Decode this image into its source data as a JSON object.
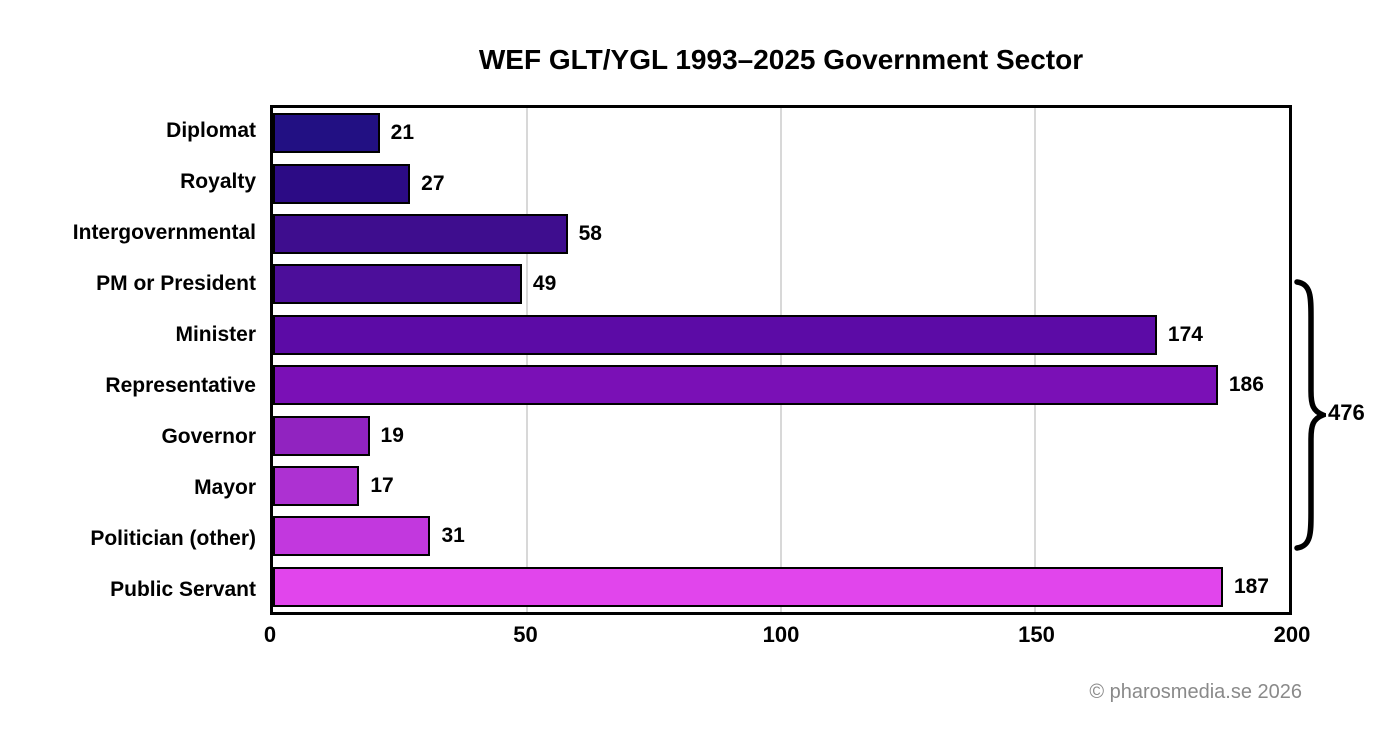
{
  "chart_data": {
    "type": "bar",
    "orientation": "horizontal",
    "title": "WEF GLT/YGL 1993–2025 Government Sector",
    "categories": [
      "Diplomat",
      "Royalty",
      "Intergovernmental",
      "PM or President",
      "Minister",
      "Representative",
      "Governor",
      "Mayor",
      "Politician (other)",
      "Public Servant"
    ],
    "values": [
      21,
      27,
      58,
      49,
      174,
      186,
      19,
      17,
      31,
      187
    ],
    "bar_colors": [
      "#221083",
      "#2c0b85",
      "#3e0d8e",
      "#4c0e9a",
      "#5c0ba6",
      "#7a10b6",
      "#9123c0",
      "#ad31d2",
      "#c238de",
      "#e145ec"
    ],
    "bar_border_color": "#000000",
    "xlabel": "",
    "ylabel": "",
    "xlim": [
      0,
      200
    ],
    "xticks": [
      0,
      50,
      100,
      150,
      200
    ],
    "gridlines": [
      50,
      100,
      150
    ],
    "grid_color": "#d8d8d8",
    "legend": "none",
    "annotation": {
      "label": "476",
      "total_of": [
        "PM or President",
        "Minister",
        "Representative",
        "Governor",
        "Mayor",
        "Politician (other)"
      ]
    }
  },
  "footer": {
    "credit": "© pharosmedia.se 2026"
  }
}
